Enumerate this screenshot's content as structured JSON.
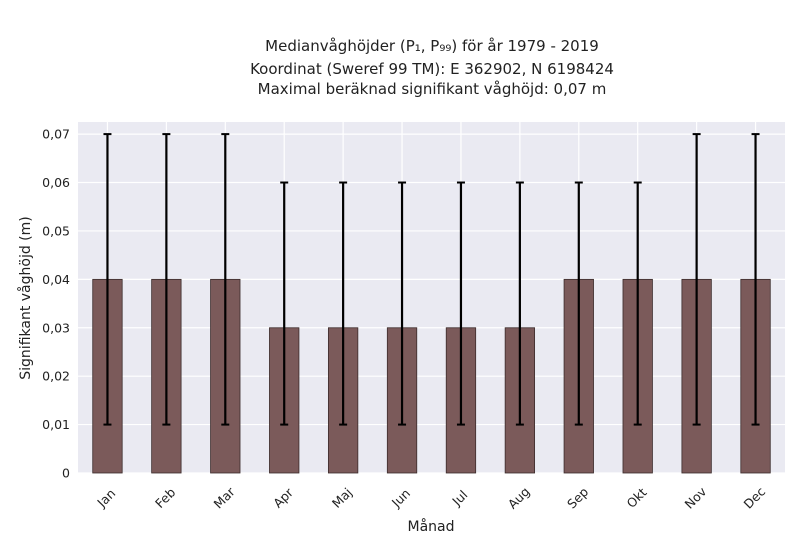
{
  "chart_data": {
    "type": "bar",
    "title_lines": [
      "Medianvåghöjder (P₁, P₉₉) för år 1979 - 2019",
      "Koordinat (Sweref 99 TM): E 362902, N 6198424",
      "Maximal beräknad signifikant våghöjd: 0,07 m"
    ],
    "xlabel": "Månad",
    "ylabel": "Signifikant våghöjd (m)",
    "categories": [
      "Jan",
      "Feb",
      "Mar",
      "Apr",
      "Maj",
      "Jun",
      "Jul",
      "Aug",
      "Sep",
      "Okt",
      "Nov",
      "Dec"
    ],
    "values": [
      0.04,
      0.04,
      0.04,
      0.03,
      0.03,
      0.03,
      0.03,
      0.03,
      0.04,
      0.04,
      0.04,
      0.04
    ],
    "error_low": [
      0.01,
      0.01,
      0.01,
      0.01,
      0.01,
      0.01,
      0.01,
      0.01,
      0.01,
      0.01,
      0.01,
      0.01
    ],
    "error_high": [
      0.07,
      0.07,
      0.07,
      0.06,
      0.06,
      0.06,
      0.06,
      0.06,
      0.06,
      0.06,
      0.07,
      0.07
    ],
    "ylim": [
      0,
      0.0725
    ],
    "yticks": [
      0,
      0.01,
      0.02,
      0.03,
      0.04,
      0.05,
      0.06,
      0.07
    ],
    "ytick_labels": [
      "0",
      "0,01",
      "0,02",
      "0,03",
      "0,04",
      "0,05",
      "0,06",
      "0,07"
    ],
    "grid": true,
    "colors": {
      "bar": "#7b5a5a",
      "bar_edge": "#3b2b2b",
      "error": "#000000",
      "plot_bg": "#eaeaf2",
      "grid": "#ffffff"
    }
  }
}
